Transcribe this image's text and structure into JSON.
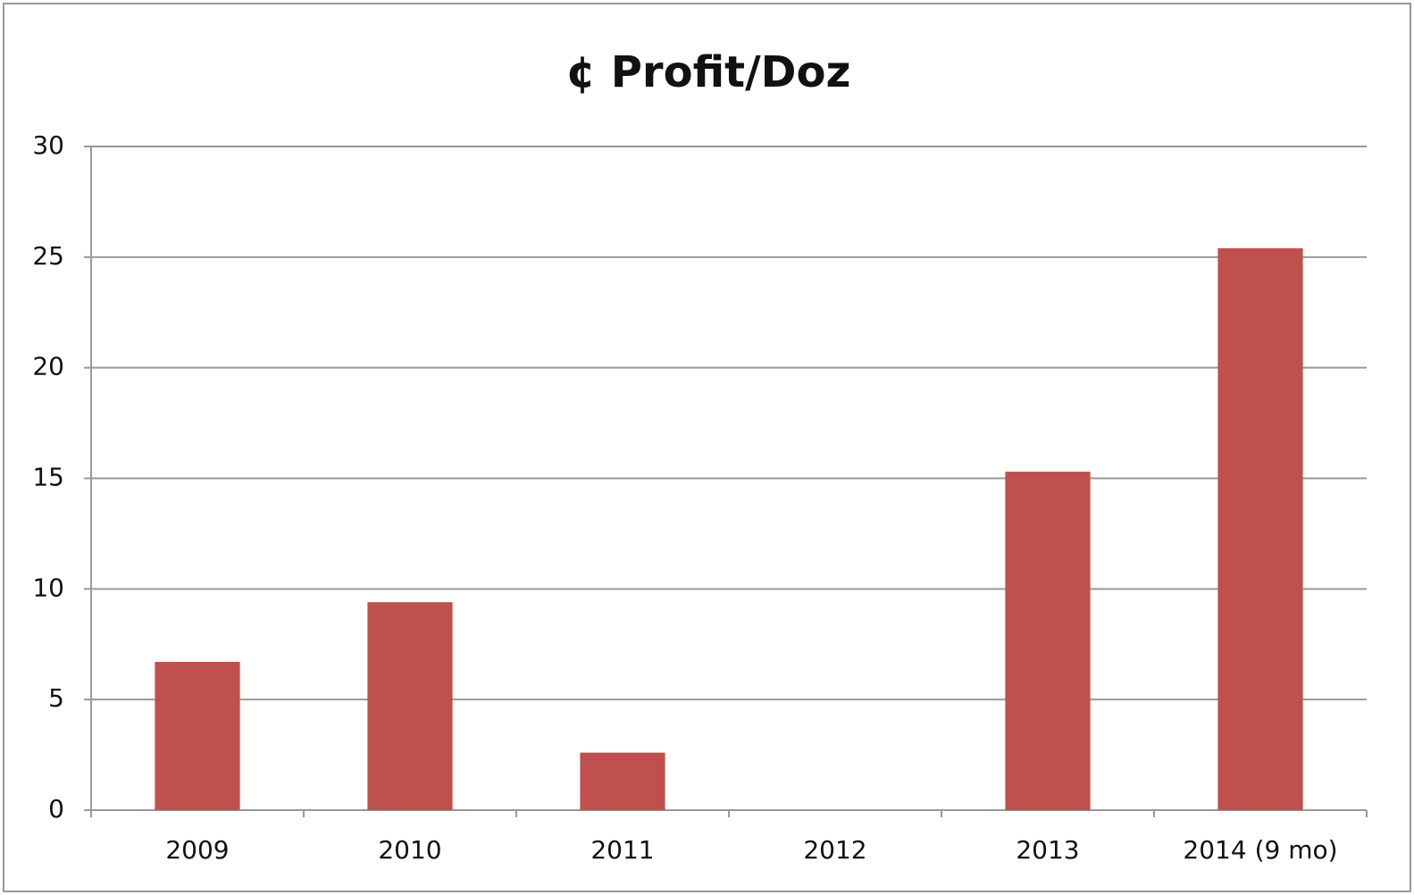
{
  "chart_data": {
    "type": "bar",
    "title": "¢ Profit/Doz",
    "categories": [
      "2009",
      "2010",
      "2011",
      "2012",
      "2013",
      "2014 (9 mo)"
    ],
    "values": [
      6.7,
      9.4,
      2.6,
      0,
      15.3,
      25.4
    ],
    "color": "#c0504d",
    "ylim": [
      0,
      30
    ],
    "yticks": [
      0,
      5,
      10,
      15,
      20,
      25,
      30
    ],
    "grid": true
  }
}
